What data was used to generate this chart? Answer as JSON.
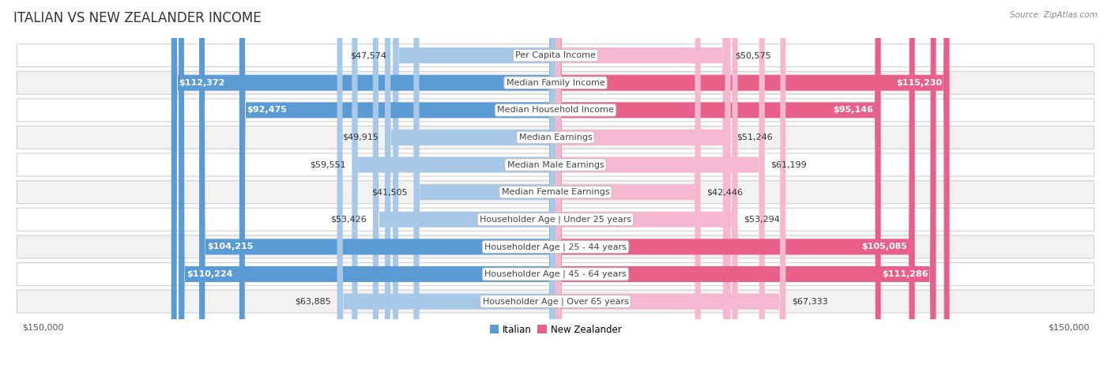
{
  "title": "ITALIAN VS NEW ZEALANDER INCOME",
  "source": "Source: ZipAtlas.com",
  "categories": [
    "Per Capita Income",
    "Median Family Income",
    "Median Household Income",
    "Median Earnings",
    "Median Male Earnings",
    "Median Female Earnings",
    "Householder Age | Under 25 years",
    "Householder Age | 25 - 44 years",
    "Householder Age | 45 - 64 years",
    "Householder Age | Over 65 years"
  ],
  "italian_values": [
    47574,
    112372,
    92475,
    49915,
    59551,
    41505,
    53426,
    104215,
    110224,
    63885
  ],
  "nz_values": [
    50575,
    115230,
    95146,
    51246,
    61199,
    42446,
    53294,
    105085,
    111286,
    67333
  ],
  "italian_labels": [
    "$47,574",
    "$112,372",
    "$92,475",
    "$49,915",
    "$59,551",
    "$41,505",
    "$53,426",
    "$104,215",
    "$110,224",
    "$63,885"
  ],
  "nz_labels": [
    "$50,575",
    "$115,230",
    "$95,146",
    "$51,246",
    "$61,199",
    "$42,446",
    "$53,294",
    "$105,085",
    "$111,286",
    "$67,333"
  ],
  "italian_color_light": "#a8c8e8",
  "italian_color_dark": "#5b9bd5",
  "nz_color_light": "#f5b8d0",
  "nz_color_dark": "#e8608a",
  "dark_threshold": 80000,
  "max_value": 150000,
  "legend_label_italian": "Italian",
  "legend_label_nz": "New Zealander",
  "background_color": "#ffffff",
  "row_bg_even": "#ffffff",
  "row_bg_odd": "#f2f2f2",
  "row_border_color": "#d0d0d0",
  "title_fontsize": 12,
  "label_fontsize": 8,
  "category_fontsize": 8,
  "axis_label_fontsize": 8
}
